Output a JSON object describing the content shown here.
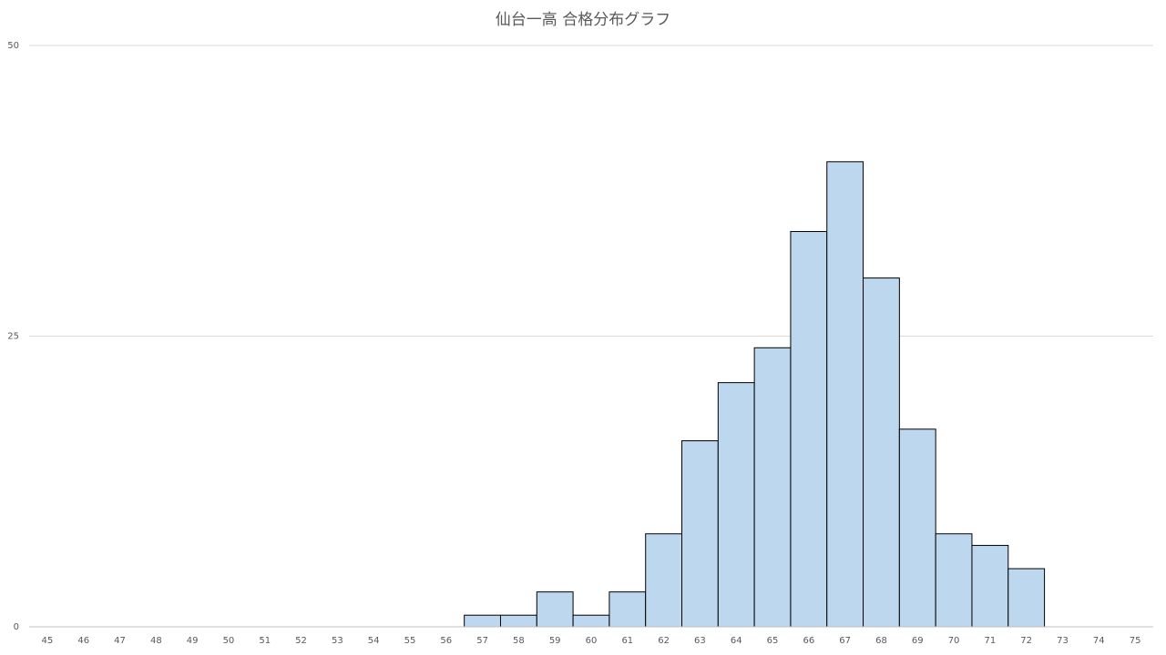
{
  "chart_data": {
    "type": "bar",
    "title": "仙台一高 合格分布グラフ",
    "categories": [
      45,
      46,
      47,
      48,
      49,
      50,
      51,
      52,
      53,
      54,
      55,
      56,
      57,
      58,
      59,
      60,
      61,
      62,
      63,
      64,
      65,
      66,
      67,
      68,
      69,
      70,
      71,
      72,
      73,
      74,
      75
    ],
    "values": [
      0,
      0,
      0,
      0,
      0,
      0,
      0,
      0,
      0,
      0,
      0,
      0,
      1,
      1,
      3,
      1,
      3,
      8,
      16,
      21,
      24,
      34,
      40,
      30,
      17,
      8,
      7,
      5,
      0,
      0,
      0
    ],
    "color": "#bdd7ee",
    "ylim": [
      0,
      50
    ],
    "yticks": [
      0,
      25,
      50
    ],
    "grid": true
  }
}
